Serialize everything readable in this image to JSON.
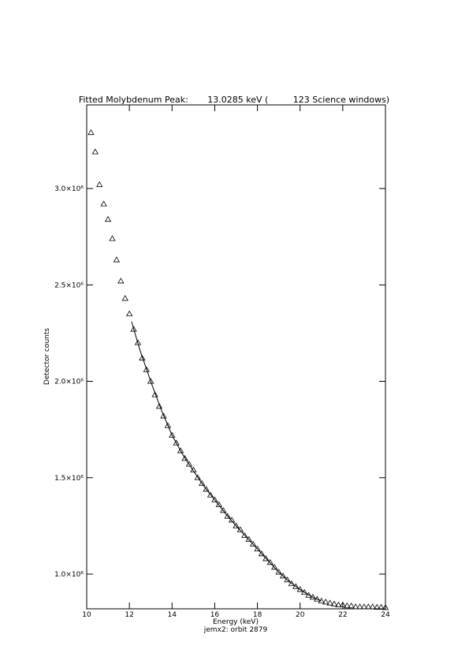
{
  "chart_data": {
    "type": "scatter",
    "title": "Fitted Molybdenum Peak:       13.0285 keV (         123 Science windows)",
    "xlabel": "Energy (keV)",
    "subtitle": "jemx2: orbit 2879",
    "ylabel": "Detector counts",
    "xlim": [
      10,
      24
    ],
    "xticks": [
      10,
      12,
      14,
      16,
      18,
      20,
      22,
      24
    ],
    "ylim": [
      820000,
      3434000
    ],
    "yticks": [
      {
        "value": 1000000,
        "label": "1.0×10⁶"
      },
      {
        "value": 1500000,
        "label": "1.5×10⁶"
      },
      {
        "value": 2000000,
        "label": "2.0×10⁶"
      },
      {
        "value": 2500000,
        "label": "2.5×10⁶"
      },
      {
        "value": 3000000,
        "label": "3.0×10⁶"
      }
    ],
    "series": [
      {
        "style": "triangle",
        "color": "#000000",
        "x": [
          10.2,
          10.4,
          10.6,
          10.8,
          11.0,
          11.2,
          11.4,
          11.6,
          11.8,
          12.0,
          12.2,
          12.4,
          12.6,
          12.8,
          13.0,
          13.2,
          13.4,
          13.6,
          13.8,
          14.0,
          14.2,
          14.4,
          14.6,
          14.8,
          15.0,
          15.2,
          15.4,
          15.6,
          15.8,
          16.0,
          16.2,
          16.4,
          16.6,
          16.8,
          17.0,
          17.2,
          17.4,
          17.6,
          17.8,
          18.0,
          18.2,
          18.4,
          18.6,
          18.8,
          19.0,
          19.2,
          19.4,
          19.6,
          19.8,
          20.0,
          20.2,
          20.4,
          20.6,
          20.8,
          21.0,
          21.2,
          21.4,
          21.6,
          21.8,
          22.0,
          22.2,
          22.4,
          22.6,
          22.8,
          23.0,
          23.2,
          23.4,
          23.6,
          23.8,
          24.0
        ],
        "values": [
          3290000,
          3190000,
          3020000,
          2920000,
          2840000,
          2740000,
          2630000,
          2520000,
          2430000,
          2350000,
          2270000,
          2200000,
          2120000,
          2060000,
          2000000,
          1930000,
          1870000,
          1820000,
          1770000,
          1720000,
          1680000,
          1640000,
          1600000,
          1570000,
          1540000,
          1500000,
          1470000,
          1440000,
          1410000,
          1385000,
          1360000,
          1330000,
          1300000,
          1280000,
          1250000,
          1230000,
          1200000,
          1180000,
          1155000,
          1130000,
          1105000,
          1080000,
          1060000,
          1035000,
          1010000,
          990000,
          970000,
          950000,
          935000,
          920000,
          905000,
          890000,
          880000,
          870000,
          860000,
          855000,
          850000,
          845000,
          840000,
          840000,
          835000,
          835000,
          830000,
          830000,
          830000,
          830000,
          830000,
          828000,
          828000,
          826000
        ]
      },
      {
        "style": "line",
        "color": "#000000",
        "x": [
          12.1,
          12.5,
          13.0,
          13.5,
          14.0,
          14.5,
          15.0,
          15.5,
          16.0,
          16.5,
          17.0,
          17.5,
          18.0,
          18.5,
          19.0,
          19.5,
          20.0,
          20.5,
          21.0
        ],
        "values": [
          2310000,
          2160000,
          2000000,
          1850000,
          1720000,
          1620000,
          1535000,
          1455000,
          1385000,
          1315000,
          1250000,
          1190000,
          1130000,
          1070000,
          1010000,
          960000,
          920000,
          885000,
          860000
        ]
      }
    ]
  }
}
